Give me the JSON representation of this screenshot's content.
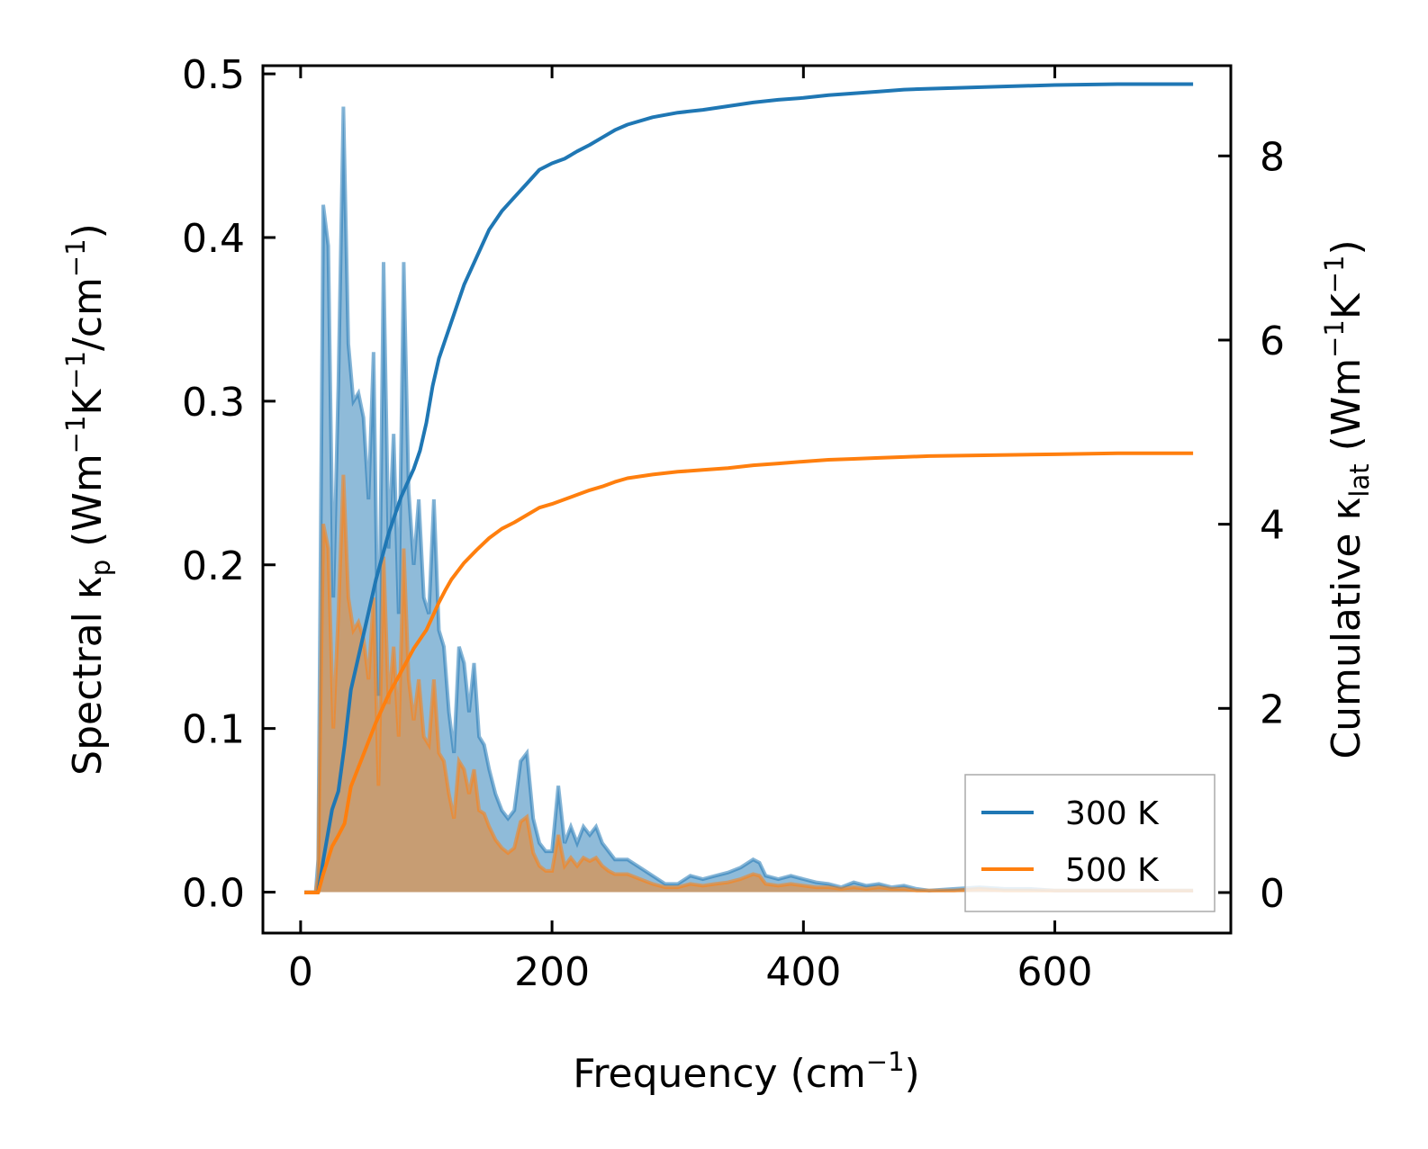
{
  "chart_data": {
    "type": "line",
    "xlabel": {
      "text": "Frequency (cm",
      "sup": "−1",
      "tail": ")"
    },
    "ylabel_left": {
      "parts": [
        {
          "t": "Spectral κ",
          "s": ""
        },
        {
          "t": "p",
          "s": "sub"
        },
        {
          "t": " (Wm",
          "s": ""
        },
        {
          "t": "−1",
          "s": "sup"
        },
        {
          "t": "K",
          "s": ""
        },
        {
          "t": "−1",
          "s": "sup"
        },
        {
          "t": "/cm",
          "s": ""
        },
        {
          "t": "−1",
          "s": "sup"
        },
        {
          "t": ")",
          "s": ""
        }
      ]
    },
    "ylabel_right": {
      "parts": [
        {
          "t": "Cumulative κ",
          "s": ""
        },
        {
          "t": "lat",
          "s": "sub"
        },
        {
          "t": " (Wm",
          "s": ""
        },
        {
          "t": "−1",
          "s": "sup"
        },
        {
          "t": "K",
          "s": ""
        },
        {
          "t": "−1",
          "s": "sup"
        },
        {
          "t": ")",
          "s": ""
        }
      ]
    },
    "xlim": [
      -30,
      740
    ],
    "ylim_left": [
      -0.025,
      0.505
    ],
    "ylim_right": [
      -0.44,
      8.98
    ],
    "xticks": [
      0,
      200,
      400,
      600
    ],
    "xtick_labels": [
      "0",
      "200",
      "400",
      "600"
    ],
    "yticks_left": [
      0.0,
      0.1,
      0.2,
      0.3,
      0.4,
      0.5
    ],
    "ytick_labels_left": [
      "0.0",
      "0.1",
      "0.2",
      "0.3",
      "0.4",
      "0.5"
    ],
    "yticks_right": [
      0,
      2,
      4,
      6,
      8
    ],
    "ytick_labels_right": [
      "0",
      "2",
      "4",
      "6",
      "8"
    ],
    "legend": {
      "position": "lower-right",
      "entries": [
        "300 K",
        "500 K"
      ]
    },
    "colors": {
      "300 K": "#1f77b4",
      "500 K": "#ff7f0e",
      "fill_300": "#1f77b4",
      "fill_500": "#ff7f0e"
    },
    "series_spectral": [
      {
        "name": "300 K spectral",
        "x": [
          3,
          12,
          14,
          18,
          22,
          26,
          30,
          34,
          38,
          42,
          46,
          50,
          54,
          58,
          62,
          66,
          70,
          74,
          78,
          82,
          86,
          90,
          94,
          98,
          102,
          106,
          110,
          114,
          118,
          122,
          126,
          130,
          134,
          138,
          142,
          146,
          150,
          155,
          160,
          165,
          170,
          175,
          180,
          185,
          190,
          195,
          200,
          205,
          210,
          215,
          220,
          225,
          230,
          235,
          240,
          245,
          250,
          255,
          260,
          270,
          280,
          290,
          300,
          310,
          320,
          330,
          340,
          350,
          360,
          365,
          370,
          380,
          390,
          400,
          410,
          420,
          430,
          440,
          450,
          460,
          470,
          480,
          490,
          500,
          520,
          540,
          560,
          580,
          600,
          620,
          640,
          660,
          680,
          700,
          710
        ],
        "y": [
          0.0,
          0.0,
          0.02,
          0.42,
          0.395,
          0.18,
          0.31,
          0.48,
          0.335,
          0.3,
          0.305,
          0.29,
          0.24,
          0.33,
          0.12,
          0.385,
          0.21,
          0.28,
          0.17,
          0.385,
          0.245,
          0.2,
          0.24,
          0.18,
          0.17,
          0.24,
          0.16,
          0.15,
          0.11,
          0.085,
          0.15,
          0.14,
          0.11,
          0.14,
          0.095,
          0.09,
          0.075,
          0.06,
          0.05,
          0.045,
          0.05,
          0.08,
          0.085,
          0.045,
          0.03,
          0.025,
          0.025,
          0.065,
          0.03,
          0.04,
          0.03,
          0.04,
          0.035,
          0.04,
          0.03,
          0.025,
          0.02,
          0.02,
          0.02,
          0.015,
          0.01,
          0.005,
          0.005,
          0.01,
          0.008,
          0.01,
          0.012,
          0.015,
          0.02,
          0.018,
          0.01,
          0.008,
          0.01,
          0.008,
          0.006,
          0.005,
          0.003,
          0.006,
          0.004,
          0.005,
          0.003,
          0.004,
          0.002,
          0.001,
          0.002,
          0.003,
          0.002,
          0.002,
          0.001,
          0.001,
          0.001,
          0.001,
          0.001,
          0.001,
          0.001
        ]
      },
      {
        "name": "500 K spectral",
        "x": [
          3,
          12,
          14,
          18,
          22,
          26,
          30,
          34,
          38,
          42,
          46,
          50,
          54,
          58,
          62,
          66,
          70,
          74,
          78,
          82,
          86,
          90,
          94,
          98,
          102,
          106,
          110,
          114,
          118,
          122,
          126,
          130,
          134,
          138,
          142,
          146,
          150,
          155,
          160,
          165,
          170,
          175,
          180,
          185,
          190,
          195,
          200,
          205,
          210,
          215,
          220,
          225,
          230,
          235,
          240,
          245,
          250,
          255,
          260,
          270,
          280,
          290,
          300,
          310,
          320,
          330,
          340,
          350,
          360,
          365,
          370,
          380,
          390,
          400,
          410,
          420,
          430,
          440,
          450,
          460,
          470,
          480,
          490,
          500,
          520,
          540,
          560,
          580,
          600,
          620,
          640,
          660,
          680,
          700,
          710
        ],
        "y": [
          0.0,
          0.0,
          0.01,
          0.225,
          0.21,
          0.1,
          0.17,
          0.255,
          0.18,
          0.16,
          0.165,
          0.155,
          0.13,
          0.18,
          0.065,
          0.205,
          0.115,
          0.15,
          0.095,
          0.21,
          0.13,
          0.105,
          0.13,
          0.095,
          0.09,
          0.13,
          0.085,
          0.08,
          0.06,
          0.045,
          0.08,
          0.075,
          0.06,
          0.075,
          0.05,
          0.048,
          0.04,
          0.032,
          0.027,
          0.024,
          0.027,
          0.043,
          0.046,
          0.024,
          0.016,
          0.013,
          0.013,
          0.035,
          0.016,
          0.021,
          0.016,
          0.021,
          0.019,
          0.021,
          0.016,
          0.013,
          0.011,
          0.011,
          0.011,
          0.008,
          0.005,
          0.003,
          0.003,
          0.005,
          0.004,
          0.005,
          0.006,
          0.008,
          0.011,
          0.01,
          0.005,
          0.004,
          0.005,
          0.004,
          0.003,
          0.003,
          0.002,
          0.003,
          0.002,
          0.003,
          0.002,
          0.002,
          0.001,
          0.001,
          0.001,
          0.002,
          0.001,
          0.001,
          0.001,
          0.001,
          0.001,
          0.001,
          0.001,
          0.001,
          0.001
        ]
      }
    ],
    "series_cumulative": [
      {
        "name": "300 K",
        "x": [
          3,
          12,
          14,
          18,
          25,
          30,
          35,
          40,
          50,
          60,
          70,
          80,
          90,
          95,
          100,
          105,
          110,
          115,
          120,
          130,
          140,
          150,
          160,
          170,
          180,
          190,
          200,
          210,
          220,
          230,
          240,
          250,
          260,
          280,
          300,
          320,
          340,
          360,
          380,
          400,
          420,
          440,
          460,
          480,
          500,
          550,
          600,
          650,
          710
        ],
        "y": [
          0.0,
          0.0,
          0.0,
          0.35,
          0.9,
          1.1,
          1.6,
          2.2,
          2.8,
          3.4,
          3.9,
          4.3,
          4.6,
          4.8,
          5.1,
          5.5,
          5.8,
          6.0,
          6.2,
          6.6,
          6.9,
          7.2,
          7.4,
          7.55,
          7.7,
          7.85,
          7.92,
          7.97,
          8.05,
          8.12,
          8.2,
          8.28,
          8.34,
          8.42,
          8.47,
          8.5,
          8.54,
          8.58,
          8.61,
          8.63,
          8.66,
          8.68,
          8.7,
          8.72,
          8.73,
          8.75,
          8.77,
          8.78,
          8.78
        ]
      },
      {
        "name": "500 K",
        "x": [
          3,
          12,
          14,
          18,
          25,
          30,
          35,
          40,
          50,
          60,
          70,
          80,
          90,
          95,
          100,
          105,
          110,
          115,
          120,
          130,
          140,
          150,
          160,
          170,
          180,
          190,
          200,
          210,
          220,
          230,
          240,
          250,
          260,
          280,
          300,
          320,
          340,
          360,
          380,
          400,
          420,
          440,
          460,
          480,
          500,
          550,
          600,
          650,
          710
        ],
        "y": [
          0.0,
          0.0,
          0.0,
          0.2,
          0.5,
          0.62,
          0.75,
          1.15,
          1.5,
          1.85,
          2.15,
          2.4,
          2.65,
          2.75,
          2.85,
          3.0,
          3.15,
          3.28,
          3.4,
          3.58,
          3.72,
          3.85,
          3.95,
          4.02,
          4.1,
          4.18,
          4.22,
          4.27,
          4.32,
          4.37,
          4.41,
          4.46,
          4.5,
          4.54,
          4.57,
          4.59,
          4.61,
          4.64,
          4.66,
          4.68,
          4.7,
          4.71,
          4.72,
          4.73,
          4.74,
          4.75,
          4.76,
          4.77,
          4.77
        ]
      }
    ]
  }
}
